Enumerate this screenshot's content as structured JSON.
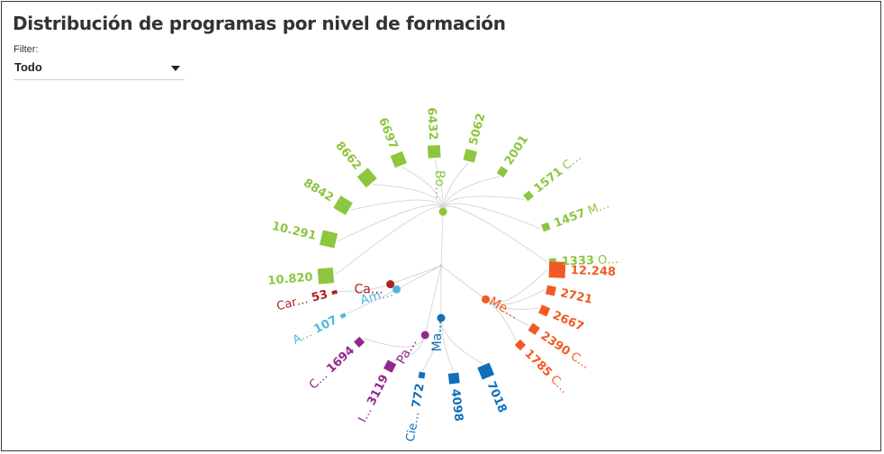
{
  "title": "Distribución de programas por nivel de formación",
  "filter": {
    "label": "Filter:",
    "value": "Todo"
  },
  "colors": {
    "green": "#8dc63f",
    "orange": "#f15a24",
    "blue": "#0f6fba",
    "purple": "#93278f",
    "cyan": "#4fb8de",
    "red": "#b01f24",
    "link": "#d8d8d8"
  },
  "chart_data": {
    "type": "radial-tree",
    "groups": [
      {
        "key": "green",
        "label": "Bo…",
        "leaves": [
          {
            "value": 10820,
            "label": "10.820",
            "name": ""
          },
          {
            "value": 10291,
            "label": "10.291",
            "name": ""
          },
          {
            "value": 8842,
            "label": "8842",
            "name": ""
          },
          {
            "value": 8662,
            "label": "8662",
            "name": ""
          },
          {
            "value": 6697,
            "label": "6697",
            "name": ""
          },
          {
            "value": 6432,
            "label": "6432",
            "name": ""
          },
          {
            "value": 5062,
            "label": "5062",
            "name": ""
          },
          {
            "value": 2001,
            "label": "2001",
            "name": ""
          },
          {
            "value": 1571,
            "label": "1571",
            "name": "C…"
          },
          {
            "value": 1457,
            "label": "1457",
            "name": "M…"
          },
          {
            "value": 1333,
            "label": "1333",
            "name": "O…"
          }
        ]
      },
      {
        "key": "orange",
        "label": "Me…",
        "leaves": [
          {
            "value": 12248,
            "label": "12.248",
            "name": ""
          },
          {
            "value": 2721,
            "label": "2721",
            "name": ""
          },
          {
            "value": 2667,
            "label": "2667",
            "name": ""
          },
          {
            "value": 2390,
            "label": "2390",
            "name": "C…"
          },
          {
            "value": 1785,
            "label": "1785",
            "name": "C…"
          }
        ]
      },
      {
        "key": "blue",
        "label": "Ma…",
        "leaves": [
          {
            "value": 7018,
            "label": "7018",
            "name": ""
          },
          {
            "value": 4098,
            "label": "4098",
            "name": ""
          },
          {
            "value": 772,
            "label": "772",
            "name": "Cie…"
          }
        ]
      },
      {
        "key": "purple",
        "label": "Pa…",
        "leaves": [
          {
            "value": 3119,
            "label": "3119",
            "name": "I…"
          },
          {
            "value": 1694,
            "label": "1694",
            "name": "C…"
          }
        ]
      },
      {
        "key": "cyan",
        "label": "Am…",
        "leaves": [
          {
            "value": 107,
            "label": "107",
            "name": "A…"
          }
        ]
      },
      {
        "key": "red",
        "label": "Ca…",
        "leaves": [
          {
            "value": 53,
            "label": "53",
            "name": "Car…"
          }
        ]
      }
    ]
  }
}
